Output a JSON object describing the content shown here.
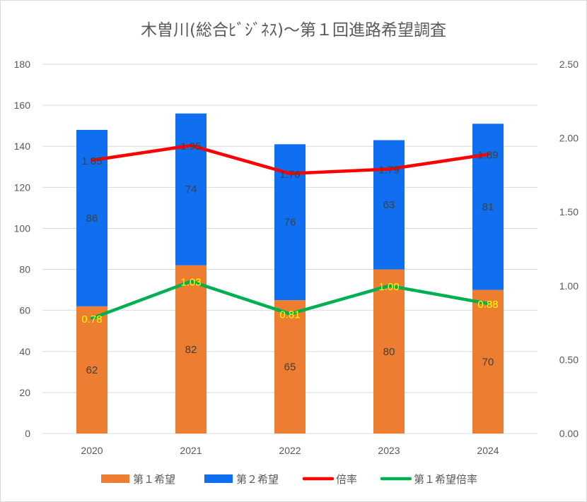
{
  "chart_data": {
    "type": "bar",
    "stacked": true,
    "title": "木曽川(総合ﾋﾞｼﾞﾈｽ)～第１回進路希望調査",
    "categories": [
      "2020",
      "2021",
      "2022",
      "2023",
      "2024"
    ],
    "y_left": {
      "min": 0,
      "max": 180,
      "step": 20,
      "ticks": [
        "0",
        "20",
        "40",
        "60",
        "80",
        "100",
        "120",
        "140",
        "160",
        "180"
      ]
    },
    "y_right": {
      "min": 0,
      "max": 2.5,
      "step": 0.5,
      "ticks": [
        "0.00",
        "0.50",
        "1.00",
        "1.50",
        "2.00",
        "2.50"
      ]
    },
    "grid": true,
    "legend_position": "bottom",
    "series": [
      {
        "name": "第１希望",
        "kind": "bar",
        "axis": "left",
        "color": "#ed7d31",
        "values": [
          62,
          82,
          65,
          80,
          70
        ],
        "labels": [
          "62",
          "82",
          "65",
          "80",
          "70"
        ]
      },
      {
        "name": "第２希望",
        "kind": "bar",
        "axis": "left",
        "color": "#0f6ff0",
        "values": [
          86,
          74,
          76,
          63,
          81
        ],
        "labels": [
          "86",
          "74",
          "76",
          "63",
          "81"
        ]
      },
      {
        "name": "倍率",
        "kind": "line",
        "axis": "right",
        "color": "#ff0000",
        "values": [
          1.85,
          1.95,
          1.76,
          1.79,
          1.89
        ],
        "labels": [
          "1.85",
          "1.95",
          "1.76",
          "1.79",
          "1.89"
        ]
      },
      {
        "name": "第１希望倍率",
        "kind": "line",
        "axis": "right",
        "color": "#00b050",
        "values": [
          0.78,
          1.03,
          0.81,
          1.0,
          0.88
        ],
        "labels": [
          "0.78",
          "1.03",
          "0.81",
          "1.00",
          "0.88"
        ]
      }
    ]
  }
}
